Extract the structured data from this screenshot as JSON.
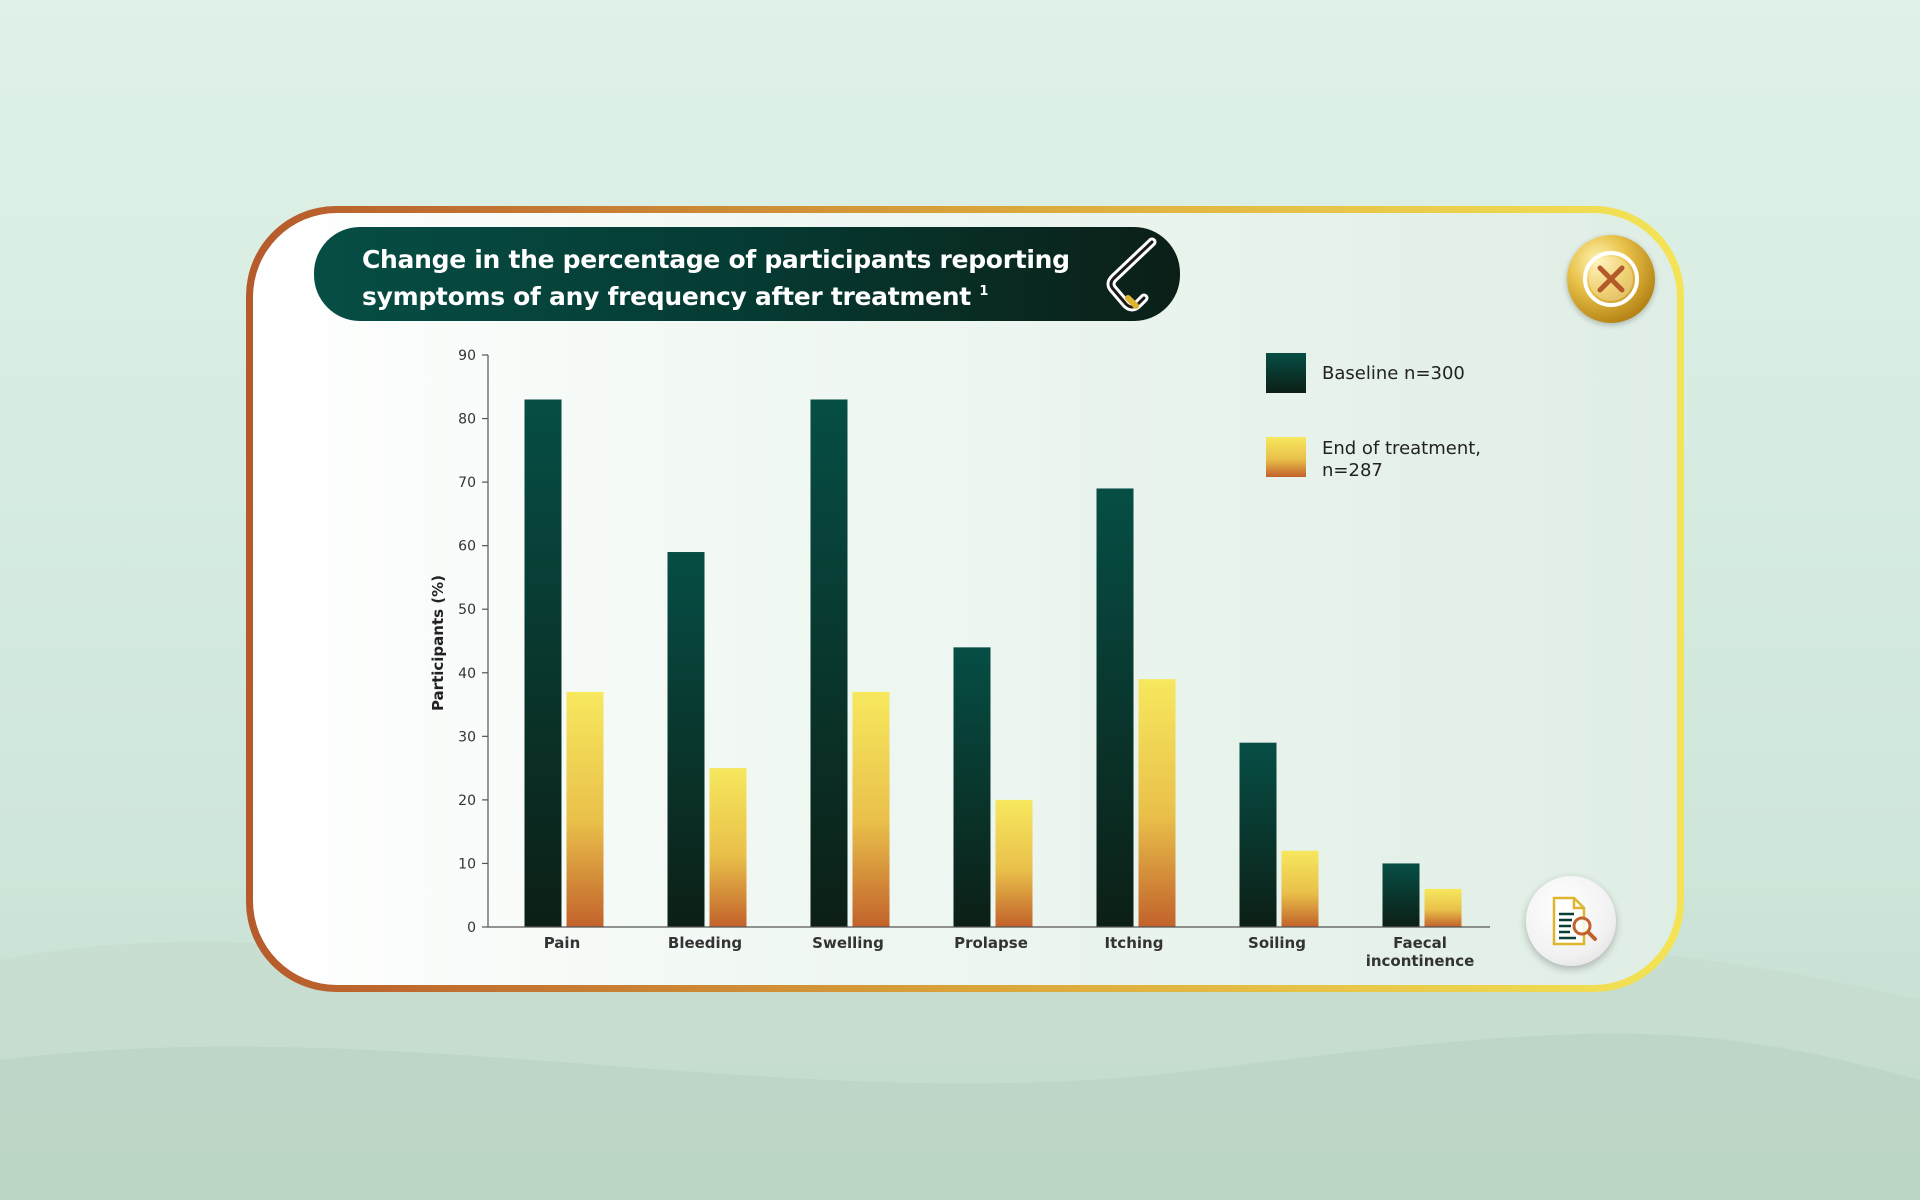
{
  "title": "Change in the percentage of participants reporting symptoms of any frequency after treatment",
  "title_ref": "1",
  "icons": {
    "close": "close-icon",
    "brand": "brand-logo-icon",
    "reference": "document-search-icon"
  },
  "colors": {
    "baseline_top": "#064e45",
    "baseline_bottom": "#0c1f16",
    "end_top": "#f7e85e",
    "end_bottom": "#c2622b",
    "frame_left": "#b65a2c",
    "frame_right": "#f4e455"
  },
  "chart_data": {
    "type": "bar",
    "categories": [
      "Pain",
      "Bleeding",
      "Swelling",
      "Prolapse",
      "Itching",
      "Soiling",
      "Faecal incontinence"
    ],
    "series": [
      {
        "name": "Baseline n=300",
        "values": [
          83,
          59,
          83,
          44,
          69,
          29,
          10
        ]
      },
      {
        "name": "End of treatment, n=287",
        "values": [
          37,
          25,
          37,
          20,
          39,
          12,
          6
        ]
      }
    ],
    "ylabel": "Participants (%)",
    "ylim": [
      0,
      90
    ],
    "yticks": [
      0,
      10,
      20,
      30,
      40,
      50,
      60,
      70,
      80,
      90
    ],
    "legend_position": "top-right",
    "grid": false
  }
}
